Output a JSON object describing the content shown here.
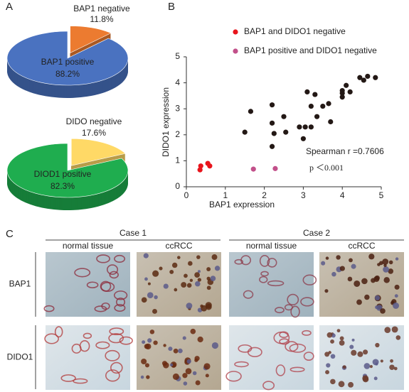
{
  "panel_labels": [
    "A",
    "B",
    "C"
  ],
  "chart_data": [
    {
      "type": "pie",
      "categories": [
        "BAP1 positive",
        "BAP1 negative"
      ],
      "values": [
        88.2,
        11.8
      ],
      "value_labels": [
        "88.2%",
        "11.8%"
      ],
      "colors": [
        "#4a72c0",
        "#ec7b30"
      ]
    },
    {
      "type": "pie",
      "categories": [
        "DIOD1 positive",
        "DIDO negative"
      ],
      "values": [
        82.3,
        17.6
      ],
      "value_labels": [
        "82.3%",
        "17.6%"
      ],
      "colors": [
        "#1fad4f",
        "#ffd966"
      ]
    },
    {
      "type": "scatter",
      "xlabel": "BAP1 expression",
      "ylabel": "DIDO1 expression",
      "xlim": [
        0,
        5
      ],
      "ylim": [
        0,
        5
      ],
      "xticks": [
        0,
        1,
        2,
        3,
        4,
        5
      ],
      "yticks": [
        0,
        1,
        2,
        3,
        4,
        5
      ],
      "annotations": [
        "Spearman r =0.7606",
        "p ＜0.001"
      ],
      "series": [
        {
          "color": "#231815",
          "x": [
            1.5,
            1.65,
            2.2,
            2.2,
            2.25,
            2.2,
            2.5,
            2.55,
            2.9,
            3.05,
            3.2,
            3.0,
            3.1,
            3.3,
            3.2,
            3.35,
            3.5,
            3.65,
            3.7,
            4.0,
            4.0,
            4.1,
            4.2,
            4.0,
            4.45,
            4.55,
            4.65,
            4.85
          ],
          "values": [
            2.1,
            2.9,
            3.15,
            2.45,
            2.05,
            1.55,
            2.7,
            2.1,
            2.3,
            2.3,
            2.3,
            1.85,
            3.65,
            3.55,
            3.1,
            2.7,
            3.1,
            3.2,
            2.5,
            3.6,
            3.7,
            3.9,
            3.65,
            3.45,
            4.2,
            4.1,
            4.25,
            4.2
          ]
        },
        {
          "name": "BAP1 and DIDO1 negative",
          "color": "#e8141c",
          "x": [
            0.35,
            0.37,
            0.55,
            0.6
          ],
          "values": [
            0.65,
            0.8,
            0.9,
            0.8
          ]
        },
        {
          "name": "BAP1 positive and DIDO1 negative",
          "color": "#c2508a",
          "x": [
            1.72,
            2.28
          ],
          "values": [
            0.68,
            0.7
          ]
        }
      ]
    }
  ],
  "micrographs": {
    "cases": [
      "Case 1",
      "Case 2"
    ],
    "columns": [
      "normal tissue",
      "ccRCC",
      "normal tissue",
      "ccRCC"
    ],
    "rows": [
      "BAP1",
      "DIDO1"
    ]
  }
}
